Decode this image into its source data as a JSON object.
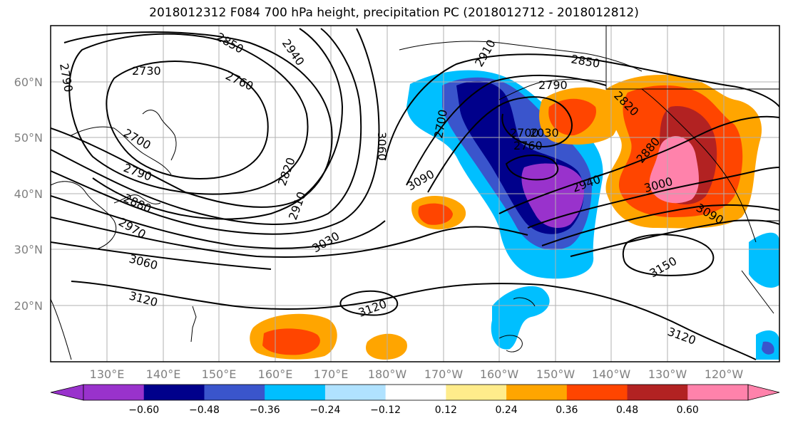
{
  "title": "2018012312 F084 700 hPa height, precipitation PC (2018012712 - 2018012812)",
  "map": {
    "lat_ticks": [
      "60°N",
      "50°N",
      "40°N",
      "30°N",
      "20°N"
    ],
    "lon_ticks": [
      "130°E",
      "140°E",
      "150°E",
      "160°E",
      "170°E",
      "180°W",
      "170°W",
      "160°W",
      "150°W",
      "140°W",
      "130°W",
      "120°W"
    ],
    "contour_labels": [
      "2790",
      "2730",
      "2850",
      "2940",
      "2910",
      "2850",
      "2760",
      "2790",
      "2700",
      "2820",
      "3060",
      "2700",
      "2790",
      "2880",
      "2970",
      "2820",
      "2910",
      "3030",
      "3090",
      "2760",
      "2700",
      "2030",
      "2940",
      "2880",
      "3000",
      "3060",
      "3120",
      "3090",
      "3120",
      "3150",
      "3120"
    ]
  },
  "colorbar": {
    "ticks": [
      "−0.60",
      "−0.48",
      "−0.36",
      "−0.24",
      "−0.12",
      "0.12",
      "0.24",
      "0.36",
      "0.48",
      "0.60"
    ],
    "colors": [
      "#9932cc",
      "#00008b",
      "#3a55cc",
      "#00bfff",
      "#b0e2ff",
      "#ffffff",
      "#ffec8b",
      "#ffa500",
      "#ff4500",
      "#b22222",
      "#ff82ab"
    ],
    "extend": "both"
  }
}
